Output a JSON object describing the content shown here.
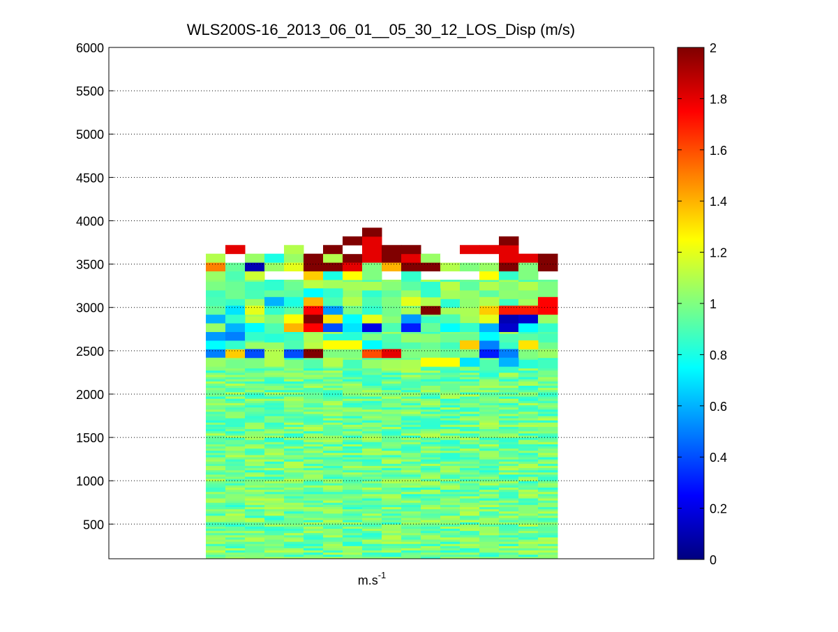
{
  "chart_data": {
    "type": "heatmap",
    "title": "WLS200S-16_2013_06_01__05_30_12_LOS_Disp (m/s)",
    "xlabel_base": "m.s",
    "xlabel_exp": "-1",
    "ylabel": "",
    "ylim": [
      100,
      6000
    ],
    "yticks": [
      500,
      1000,
      1500,
      2000,
      2500,
      3000,
      3500,
      4000,
      4500,
      5000,
      5500,
      6000
    ],
    "colorbar": {
      "colormap": "jet",
      "clim": [
        0,
        2
      ],
      "ticks": [
        0,
        0.2,
        0.4,
        0.6,
        0.8,
        1,
        1.2,
        1.4,
        1.6,
        1.8,
        2
      ]
    },
    "grid": "y-dotted",
    "column_count": 18,
    "background_value": 0.97,
    "cells": [
      [
        0,
        2420,
        2520,
        0.5
      ],
      [
        1,
        2420,
        2520,
        1.35
      ],
      [
        2,
        2420,
        2520,
        0.4
      ],
      [
        3,
        2420,
        2520,
        1.1
      ],
      [
        4,
        2420,
        2520,
        0.4
      ],
      [
        5,
        2420,
        2520,
        2.0
      ],
      [
        6,
        2420,
        2520,
        1.0
      ],
      [
        7,
        2420,
        2520,
        1.0
      ],
      [
        8,
        2420,
        2520,
        1.6
      ],
      [
        9,
        2420,
        2520,
        1.8
      ],
      [
        10,
        2420,
        2520,
        1.0
      ],
      [
        11,
        2420,
        2520,
        1.0
      ],
      [
        12,
        2420,
        2520,
        0.95
      ],
      [
        13,
        2420,
        2520,
        1.0
      ],
      [
        14,
        2420,
        2520,
        0.3
      ],
      [
        15,
        2420,
        2520,
        0.5
      ],
      [
        16,
        2420,
        2520,
        1.0
      ],
      [
        17,
        2420,
        2520,
        1.05
      ],
      [
        11,
        2320,
        2420,
        1.25
      ],
      [
        12,
        2320,
        2420,
        1.25
      ],
      [
        13,
        2320,
        2420,
        0.7
      ],
      [
        15,
        2320,
        2420,
        0.6
      ],
      [
        0,
        2320,
        2420,
        1.05
      ],
      [
        3,
        2320,
        2420,
        1.1
      ],
      [
        6,
        2320,
        2420,
        1.1
      ],
      [
        0,
        2520,
        2620,
        0.75
      ],
      [
        1,
        2520,
        2620,
        0.85
      ],
      [
        4,
        2520,
        2620,
        0.9
      ],
      [
        6,
        2520,
        2620,
        1.25
      ],
      [
        7,
        2520,
        2620,
        1.25
      ],
      [
        8,
        2520,
        2620,
        0.75
      ],
      [
        13,
        2520,
        2620,
        1.35
      ],
      [
        14,
        2520,
        2620,
        0.5
      ],
      [
        16,
        2520,
        2620,
        1.3
      ],
      [
        0,
        2620,
        2720,
        0.55
      ],
      [
        1,
        2620,
        2720,
        0.5
      ],
      [
        2,
        2620,
        2720,
        0.85
      ],
      [
        14,
        2620,
        2720,
        0.75
      ],
      [
        0,
        2720,
        2820,
        1.05
      ],
      [
        1,
        2720,
        2820,
        0.6
      ],
      [
        2,
        2720,
        2820,
        0.75
      ],
      [
        3,
        2720,
        2820,
        0.9
      ],
      [
        4,
        2720,
        2820,
        1.4
      ],
      [
        5,
        2720,
        2820,
        1.75
      ],
      [
        6,
        2720,
        2820,
        0.4
      ],
      [
        7,
        2720,
        2820,
        0.7
      ],
      [
        8,
        2720,
        2820,
        0.2
      ],
      [
        9,
        2720,
        2820,
        0.9
      ],
      [
        10,
        2720,
        2820,
        0.3
      ],
      [
        11,
        2720,
        2820,
        0.95
      ],
      [
        12,
        2720,
        2820,
        0.75
      ],
      [
        13,
        2720,
        2820,
        0.85
      ],
      [
        14,
        2720,
        2820,
        0.6
      ],
      [
        15,
        2720,
        2820,
        0.15
      ],
      [
        16,
        2720,
        2820,
        0.75
      ],
      [
        17,
        2720,
        2820,
        0.85
      ],
      [
        0,
        2820,
        2920,
        0.6
      ],
      [
        1,
        2820,
        2920,
        0.85
      ],
      [
        3,
        2820,
        2920,
        1.0
      ],
      [
        4,
        2820,
        2920,
        1.25
      ],
      [
        5,
        2820,
        2920,
        2.0
      ],
      [
        6,
        2820,
        2920,
        1.3
      ],
      [
        7,
        2820,
        2920,
        0.75
      ],
      [
        8,
        2820,
        2920,
        1.2
      ],
      [
        10,
        2820,
        2920,
        0.55
      ],
      [
        12,
        2820,
        2920,
        0.9
      ],
      [
        14,
        2820,
        2920,
        1.2
      ],
      [
        15,
        2820,
        2920,
        0.1
      ],
      [
        16,
        2820,
        2920,
        0.15
      ],
      [
        17,
        2820,
        2920,
        1.05
      ],
      [
        0,
        2920,
        3020,
        0.95
      ],
      [
        1,
        2920,
        3020,
        0.7
      ],
      [
        2,
        2920,
        3020,
        1.2
      ],
      [
        3,
        2920,
        3020,
        0.85
      ],
      [
        5,
        2920,
        3020,
        1.75
      ],
      [
        6,
        2920,
        3020,
        0.55
      ],
      [
        8,
        2920,
        3020,
        0.85
      ],
      [
        11,
        2920,
        3020,
        2.0
      ],
      [
        14,
        2920,
        3020,
        1.35
      ],
      [
        15,
        2920,
        3020,
        1.7
      ],
      [
        16,
        2920,
        3020,
        1.7
      ],
      [
        17,
        2920,
        3020,
        1.75
      ],
      [
        0,
        3020,
        3120,
        0.9
      ],
      [
        3,
        3020,
        3120,
        0.6
      ],
      [
        4,
        3020,
        3120,
        0.8
      ],
      [
        5,
        3020,
        3120,
        1.4
      ],
      [
        6,
        3020,
        3120,
        0.9
      ],
      [
        7,
        3020,
        3120,
        1.1
      ],
      [
        8,
        3020,
        3120,
        0.9
      ],
      [
        9,
        3020,
        3120,
        1.0
      ],
      [
        10,
        3020,
        3120,
        1.2
      ],
      [
        11,
        3020,
        3120,
        1.1
      ],
      [
        14,
        3020,
        3120,
        1.1
      ],
      [
        17,
        3020,
        3120,
        1.75
      ],
      [
        5,
        3120,
        3220,
        0.75
      ],
      [
        6,
        3120,
        3220,
        0.85
      ],
      [
        11,
        3120,
        3220,
        0.85
      ],
      [
        0,
        3320,
        3420,
        1.05
      ],
      [
        1,
        3320,
        3420,
        0.9
      ],
      [
        2,
        3320,
        3420,
        1.15
      ],
      [
        5,
        3320,
        3420,
        1.35
      ],
      [
        6,
        3320,
        3420,
        0.8
      ],
      [
        7,
        3320,
        3420,
        1.25
      ],
      [
        8,
        3320,
        3420,
        1.0
      ],
      [
        10,
        3320,
        3420,
        0.85
      ],
      [
        14,
        3320,
        3420,
        1.25
      ],
      [
        15,
        3320,
        3420,
        0.85
      ],
      [
        16,
        3320,
        3420,
        1.0
      ],
      [
        0,
        3420,
        3520,
        1.5
      ],
      [
        1,
        3420,
        3520,
        0.95
      ],
      [
        2,
        3420,
        3520,
        0.1
      ],
      [
        3,
        3420,
        3520,
        1.05
      ],
      [
        4,
        3420,
        3520,
        1.2
      ],
      [
        5,
        3420,
        3520,
        2.0
      ],
      [
        6,
        3420,
        3520,
        2.0
      ],
      [
        7,
        3420,
        3520,
        1.8
      ],
      [
        8,
        3420,
        3520,
        1.0
      ],
      [
        9,
        3420,
        3520,
        1.4
      ],
      [
        10,
        3420,
        3520,
        2.0
      ],
      [
        11,
        3420,
        3520,
        2.0
      ],
      [
        12,
        3420,
        3520,
        1.1
      ],
      [
        13,
        3420,
        3520,
        1.0
      ],
      [
        14,
        3420,
        3520,
        1.05
      ],
      [
        15,
        3420,
        3520,
        2.0
      ],
      [
        16,
        3420,
        3520,
        1.0
      ],
      [
        17,
        3420,
        3520,
        2.0
      ],
      [
        0,
        3520,
        3620,
        1.1
      ],
      [
        1,
        3520,
        3620,
        null
      ],
      [
        2,
        3520,
        3620,
        1.05
      ],
      [
        3,
        3520,
        3620,
        0.8
      ],
      [
        4,
        3520,
        3620,
        1.05
      ],
      [
        5,
        3520,
        3620,
        2.0
      ],
      [
        6,
        3520,
        3620,
        1.1
      ],
      [
        7,
        3520,
        3620,
        2.0
      ],
      [
        8,
        3520,
        3620,
        1.8
      ],
      [
        9,
        3520,
        3620,
        2.0
      ],
      [
        10,
        3520,
        3620,
        1.8
      ],
      [
        11,
        3520,
        3620,
        1.05
      ],
      [
        12,
        3520,
        3620,
        null
      ],
      [
        13,
        3520,
        3620,
        null
      ],
      [
        14,
        3520,
        3620,
        null
      ],
      [
        15,
        3520,
        3620,
        1.8
      ],
      [
        16,
        3520,
        3620,
        1.8
      ],
      [
        17,
        3520,
        3620,
        2.0
      ],
      [
        1,
        3620,
        3720,
        1.8
      ],
      [
        4,
        3620,
        3720,
        1.1
      ],
      [
        6,
        3620,
        3720,
        2.0
      ],
      [
        7,
        3620,
        3720,
        null
      ],
      [
        8,
        3620,
        3720,
        1.8
      ],
      [
        9,
        3620,
        3720,
        2.0
      ],
      [
        10,
        3620,
        3720,
        2.0
      ],
      [
        13,
        3620,
        3720,
        1.8
      ],
      [
        14,
        3620,
        3720,
        1.8
      ],
      [
        15,
        3620,
        3720,
        1.8
      ],
      [
        7,
        3720,
        3820,
        2.0
      ],
      [
        8,
        3720,
        3820,
        1.8
      ],
      [
        15,
        3720,
        3820,
        2.0
      ],
      [
        8,
        3820,
        3920,
        2.0
      ]
    ]
  }
}
